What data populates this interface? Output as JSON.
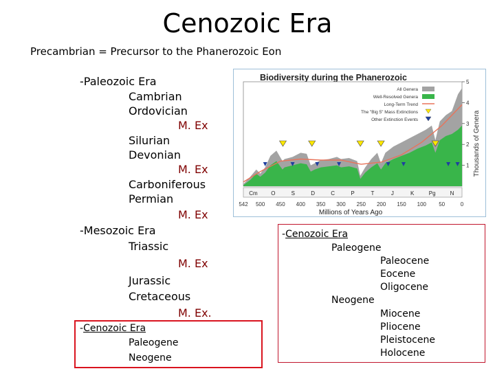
{
  "title": "Cenozoic Era",
  "subtitle": "Precambrian = Precursor to the Phanerozoic Eon",
  "outline": {
    "paleozoic": "-Paleozoic Era",
    "cambrian": "Cambrian",
    "ordovician": "Ordovician",
    "mex1": "M. Ex",
    "silurian": "Silurian",
    "devonian": "Devonian",
    "mex2": "M. Ex",
    "carboniferous": "Carboniferous",
    "permian": "Permian",
    "mex3": "M. Ex",
    "mesozoic": "-Mesozoic Era",
    "triassic": "Triassic",
    "mex4": "M. Ex",
    "jurassic": "Jurassic",
    "cretaceous": "Cretaceous",
    "mex5": "M. Ex.",
    "cenozoic_dash": "-",
    "cenozoic": "Cenozoic Era",
    "paleogene": "Paleogene",
    "neogene": "Neogene"
  },
  "cenozoic_detail": {
    "dash": "-",
    "title": "Cenozoic Era",
    "paleogene": "Paleogene",
    "paleocene": "Paleocene",
    "eocene": "Eocene",
    "oligocene": "Oligocene",
    "neogene": "Neogene",
    "miocene": "Miocene",
    "pliocene": "Pliocene",
    "pleistocene": "Pleistocene",
    "holocene": "Holocene"
  },
  "chart_data": {
    "type": "area",
    "title": "Biodiversity during the Phanerozoic",
    "xlabel": "Millions of Years Ago",
    "ylabel": "Thousands of Genera",
    "xlim": [
      542,
      0
    ],
    "ylim": [
      0,
      5
    ],
    "xticks": [
      "542",
      "500",
      "450",
      "400",
      "350",
      "300",
      "250",
      "200",
      "150",
      "100",
      "50",
      "0"
    ],
    "yticks": [
      "1",
      "2",
      "3",
      "4",
      "5"
    ],
    "periods": [
      "Cm",
      "O",
      "S",
      "D",
      "C",
      "P",
      "T",
      "J",
      "K",
      "Pg",
      "N"
    ],
    "legend": [
      "All Genera",
      "Well-Resolved Genera",
      "Long-Term Trend",
      "The \"Big 5\" Mass Extinctions",
      "Other Extinction Events"
    ],
    "legend_position": "top-right",
    "colors": {
      "all_genera": "#a3a3a3",
      "well_resolved": "#39b54a",
      "trend": "#e8735a",
      "big5": "#ffe800",
      "other": "#1f3f9f"
    },
    "series": [
      {
        "name": "All Genera",
        "x": [
          542,
          525,
          510,
          500,
          488,
          475,
          460,
          445,
          440,
          430,
          420,
          410,
          400,
          385,
          375,
          365,
          350,
          330,
          310,
          300,
          280,
          260,
          252,
          240,
          225,
          210,
          201,
          190,
          170,
          150,
          130,
          110,
          90,
          75,
          66,
          55,
          40,
          25,
          10,
          0
        ],
        "y": [
          0.1,
          0.45,
          0.8,
          0.6,
          0.9,
          1.45,
          1.7,
          1.2,
          1.3,
          1.35,
          1.4,
          1.5,
          1.6,
          1.55,
          1.0,
          1.1,
          1.25,
          1.3,
          1.4,
          1.3,
          1.35,
          1.2,
          0.5,
          0.9,
          1.3,
          1.6,
          1.1,
          1.6,
          1.9,
          2.1,
          2.3,
          2.5,
          2.7,
          2.9,
          2.2,
          3.1,
          3.4,
          3.6,
          4.4,
          4.7
        ]
      },
      {
        "name": "Well-Resolved Genera",
        "x": [
          542,
          525,
          510,
          500,
          488,
          475,
          460,
          445,
          440,
          430,
          420,
          410,
          400,
          385,
          375,
          365,
          350,
          330,
          310,
          300,
          280,
          260,
          252,
          240,
          225,
          210,
          201,
          190,
          170,
          150,
          130,
          110,
          90,
          75,
          66,
          55,
          40,
          25,
          10,
          0
        ],
        "y": [
          0.05,
          0.3,
          0.6,
          0.45,
          0.65,
          1.0,
          1.2,
          0.8,
          0.9,
          0.95,
          1.0,
          1.05,
          1.1,
          1.05,
          0.7,
          0.8,
          0.9,
          0.95,
          1.0,
          0.9,
          0.95,
          0.85,
          0.35,
          0.65,
          0.9,
          1.1,
          0.8,
          1.1,
          1.3,
          1.45,
          1.6,
          1.8,
          1.95,
          2.1,
          1.6,
          2.2,
          2.4,
          2.5,
          2.7,
          2.9
        ]
      },
      {
        "name": "Long-Term Trend",
        "x": [
          542,
          500,
          450,
          400,
          350,
          300,
          250,
          200,
          150,
          100,
          50,
          0
        ],
        "y": [
          0.2,
          0.7,
          1.2,
          1.3,
          1.25,
          1.25,
          1.05,
          1.15,
          1.5,
          2.1,
          2.9,
          3.9
        ]
      }
    ],
    "big5_extinctions_mya": [
      444,
      372,
      252,
      201,
      66
    ],
    "other_extinctions_mya": [
      488,
      420,
      359,
      305,
      183,
      145,
      34,
      11
    ]
  }
}
